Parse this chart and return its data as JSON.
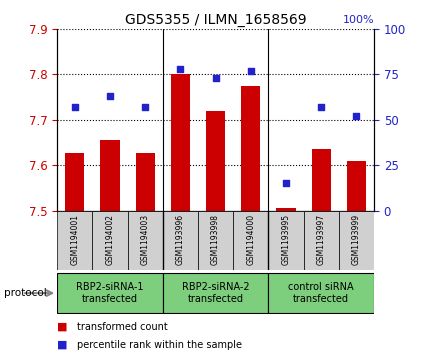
{
  "title": "GDS5355 / ILMN_1658569",
  "samples": [
    "GSM1194001",
    "GSM1194002",
    "GSM1194003",
    "GSM1193996",
    "GSM1193998",
    "GSM1194000",
    "GSM1193995",
    "GSM1193997",
    "GSM1193999"
  ],
  "bar_values": [
    7.627,
    7.655,
    7.626,
    7.8,
    7.72,
    7.775,
    7.505,
    7.635,
    7.61
  ],
  "dot_values": [
    57,
    63,
    57,
    78,
    73,
    77,
    15,
    57,
    52
  ],
  "bar_bottom": 7.5,
  "ylim_left": [
    7.5,
    7.9
  ],
  "ylim_right": [
    0,
    100
  ],
  "bar_color": "#cc0000",
  "dot_color": "#2222cc",
  "yticks_left": [
    7.5,
    7.6,
    7.7,
    7.8,
    7.9
  ],
  "yticks_right": [
    0,
    25,
    50,
    75,
    100
  ],
  "legend_red_label": "transformed count",
  "legend_blue_label": "percentile rank within the sample",
  "group_color": "#7dce7d",
  "group_sep_color": "#aaaaaa",
  "sample_bg_color": "#d0d0d0"
}
